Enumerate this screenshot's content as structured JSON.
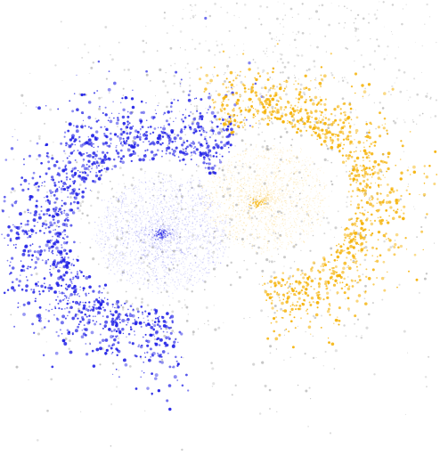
{
  "image": {
    "subject": "point-cloud-visualization",
    "background_color": "#ffffff",
    "colors": {
      "blue": "#1f1fe6",
      "orange": "#f5b000",
      "gray": "#9a9a9a"
    }
  }
}
